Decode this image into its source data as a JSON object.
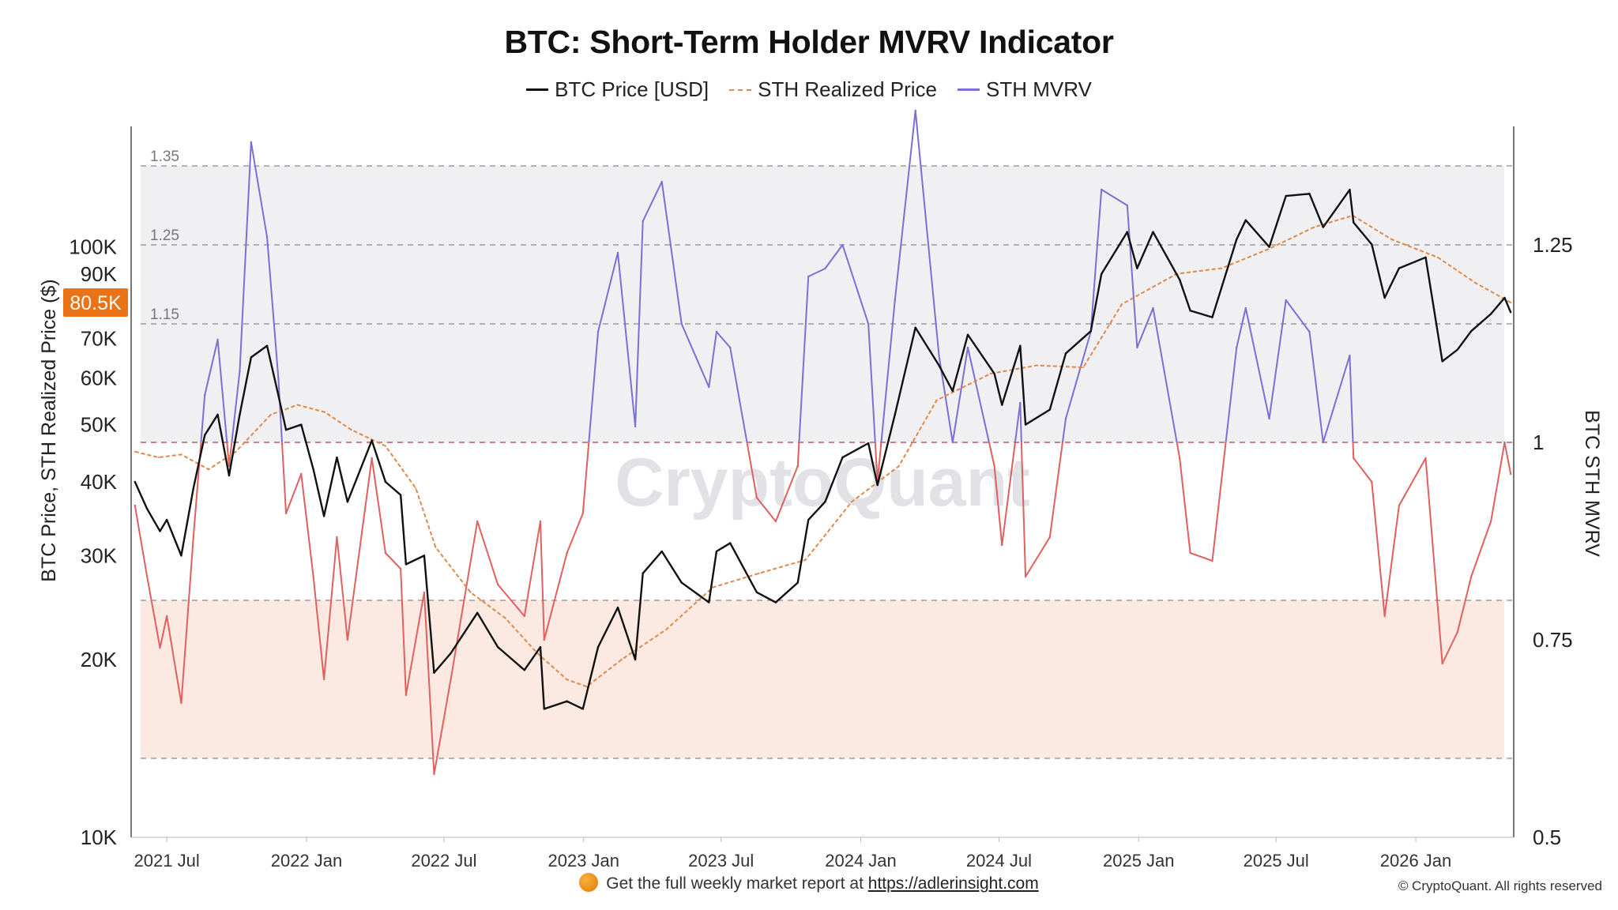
{
  "title": "BTC: Short-Term Holder MVRV Indicator",
  "legend": [
    {
      "name": "BTC Price [USD]",
      "color": "#111111",
      "style": "solid"
    },
    {
      "name": "STH Realized Price",
      "color": "#e0894a",
      "style": "dashed"
    },
    {
      "name": "STH MVRV",
      "color": "#7a6fd6",
      "style": "solid"
    }
  ],
  "footer": {
    "text": "Get the full weekly market report at",
    "link": "https://adlerinsight.com",
    "icon": "coin-icon"
  },
  "copyright": "© CryptoQuant. All rights reserved",
  "watermark": "CryptoQuant",
  "chart_data": {
    "type": "line",
    "x_axis": {
      "type": "date",
      "range": [
        "2021-05-15",
        "2026-05-10"
      ],
      "ticks": [
        {
          "date": "2021-07-01",
          "label": "2021 Jul"
        },
        {
          "date": "2022-01-01",
          "label": "2022 Jan"
        },
        {
          "date": "2022-07-01",
          "label": "2022 Jul"
        },
        {
          "date": "2023-01-01",
          "label": "2023 Jan"
        },
        {
          "date": "2023-07-01",
          "label": "2023 Jul"
        },
        {
          "date": "2024-01-01",
          "label": "2024 Jan"
        },
        {
          "date": "2024-07-01",
          "label": "2024 Jul"
        },
        {
          "date": "2025-01-01",
          "label": "2025 Jan"
        },
        {
          "date": "2025-07-01",
          "label": "2025 Jul"
        },
        {
          "date": "2026-01-01",
          "label": "2026 Jan"
        }
      ]
    },
    "y_left": {
      "label": "BTC Price, STH Realized Price ($)",
      "scale": "log",
      "range": [
        10000,
        160000
      ],
      "ticks": [
        {
          "value": 10000,
          "label": "10K"
        },
        {
          "value": 20000,
          "label": "20K"
        },
        {
          "value": 30000,
          "label": "30K"
        },
        {
          "value": 40000,
          "label": "40K"
        },
        {
          "value": 50000,
          "label": "50K"
        },
        {
          "value": 60000,
          "label": "60K"
        },
        {
          "value": 70000,
          "label": "70K"
        },
        {
          "value": 90000,
          "label": "90K"
        },
        {
          "value": 100000,
          "label": "100K"
        }
      ],
      "current_value_label": "80.5K",
      "current_value": 80500,
      "current_label_color": "#ea7318"
    },
    "y_right": {
      "label": "BTC STH MVRV",
      "scale": "linear",
      "range": [
        0.5,
        1.4
      ],
      "ticks": [
        {
          "value": 0.5,
          "label": "0.5"
        },
        {
          "value": 0.75,
          "label": "0.75"
        },
        {
          "value": 1.0,
          "label": "1"
        },
        {
          "value": 1.25,
          "label": "1.25"
        }
      ]
    },
    "reference_lines": [
      {
        "value": 1.35,
        "label": "1.35"
      },
      {
        "value": 1.25,
        "label": "1.25"
      },
      {
        "value": 1.15,
        "label": "1.15"
      },
      {
        "value": 1.0,
        "label": ""
      },
      {
        "value": 0.8,
        "label": ""
      },
      {
        "value": 0.6,
        "label": ""
      }
    ],
    "bands": [
      {
        "from": 1.0,
        "to": 1.35,
        "color": "#f0f0f3"
      },
      {
        "from": 0.6,
        "to": 0.8,
        "color": "#fce9e2"
      }
    ],
    "series": [
      {
        "name": "BTC Price [USD]",
        "axis": "left",
        "color": "#111111",
        "points": [
          [
            "2021-05-20",
            40000
          ],
          [
            "2021-06-05",
            36000
          ],
          [
            "2021-06-22",
            33000
          ],
          [
            "2021-07-01",
            34500
          ],
          [
            "2021-07-20",
            30000
          ],
          [
            "2021-08-05",
            39000
          ],
          [
            "2021-08-20",
            48000
          ],
          [
            "2021-09-06",
            52000
          ],
          [
            "2021-09-21",
            41000
          ],
          [
            "2021-10-05",
            52000
          ],
          [
            "2021-10-20",
            65000
          ],
          [
            "2021-11-10",
            68000
          ],
          [
            "2021-11-25",
            56000
          ],
          [
            "2021-12-05",
            49000
          ],
          [
            "2021-12-25",
            50000
          ],
          [
            "2022-01-10",
            42000
          ],
          [
            "2022-01-24",
            35000
          ],
          [
            "2022-02-10",
            44000
          ],
          [
            "2022-02-24",
            37000
          ],
          [
            "2022-03-28",
            47000
          ],
          [
            "2022-04-15",
            40000
          ],
          [
            "2022-05-05",
            38000
          ],
          [
            "2022-05-12",
            29000
          ],
          [
            "2022-06-05",
            30000
          ],
          [
            "2022-06-18",
            19000
          ],
          [
            "2022-07-10",
            20500
          ],
          [
            "2022-08-14",
            24000
          ],
          [
            "2022-09-10",
            21000
          ],
          [
            "2022-10-15",
            19200
          ],
          [
            "2022-11-05",
            21000
          ],
          [
            "2022-11-10",
            16500
          ],
          [
            "2022-12-10",
            17000
          ],
          [
            "2022-12-31",
            16500
          ],
          [
            "2023-01-20",
            21000
          ],
          [
            "2023-02-15",
            24500
          ],
          [
            "2023-03-10",
            20000
          ],
          [
            "2023-03-20",
            28000
          ],
          [
            "2023-04-14",
            30500
          ],
          [
            "2023-05-10",
            27000
          ],
          [
            "2023-06-15",
            25000
          ],
          [
            "2023-06-25",
            30500
          ],
          [
            "2023-07-13",
            31500
          ],
          [
            "2023-08-17",
            26000
          ],
          [
            "2023-09-11",
            25000
          ],
          [
            "2023-10-10",
            27000
          ],
          [
            "2023-10-24",
            34500
          ],
          [
            "2023-11-15",
            37000
          ],
          [
            "2023-12-08",
            44000
          ],
          [
            "2024-01-11",
            46500
          ],
          [
            "2024-01-23",
            39500
          ],
          [
            "2024-02-15",
            52000
          ],
          [
            "2024-03-13",
            73000
          ],
          [
            "2024-04-13",
            63000
          ],
          [
            "2024-05-01",
            57000
          ],
          [
            "2024-05-21",
            71000
          ],
          [
            "2024-06-25",
            61000
          ],
          [
            "2024-07-05",
            54000
          ],
          [
            "2024-07-29",
            68000
          ],
          [
            "2024-08-05",
            50000
          ],
          [
            "2024-09-06",
            53000
          ],
          [
            "2024-09-27",
            66000
          ],
          [
            "2024-10-30",
            72000
          ],
          [
            "2024-11-13",
            90000
          ],
          [
            "2024-12-17",
            106000
          ],
          [
            "2024-12-30",
            92000
          ],
          [
            "2025-01-20",
            106000
          ],
          [
            "2025-02-24",
            88000
          ],
          [
            "2025-03-10",
            78000
          ],
          [
            "2025-04-08",
            76000
          ],
          [
            "2025-05-10",
            103000
          ],
          [
            "2025-05-22",
            111000
          ],
          [
            "2025-06-22",
            100000
          ],
          [
            "2025-07-14",
            122000
          ],
          [
            "2025-08-14",
            123000
          ],
          [
            "2025-09-01",
            108000
          ],
          [
            "2025-10-06",
            125000
          ],
          [
            "2025-10-11",
            110000
          ],
          [
            "2025-11-04",
            101000
          ],
          [
            "2025-11-21",
            82000
          ],
          [
            "2025-12-10",
            92000
          ],
          [
            "2026-01-14",
            96000
          ],
          [
            "2026-02-05",
            64000
          ],
          [
            "2026-02-25",
            67000
          ],
          [
            "2026-03-15",
            72000
          ],
          [
            "2026-04-10",
            77000
          ],
          [
            "2026-04-28",
            82000
          ],
          [
            "2026-05-06",
            77500
          ]
        ]
      },
      {
        "name": "STH Realized Price",
        "axis": "left",
        "color": "#e0894a",
        "points": [
          [
            "2021-05-20",
            45000
          ],
          [
            "2021-06-20",
            44000
          ],
          [
            "2021-07-20",
            44500
          ],
          [
            "2021-08-25",
            42000
          ],
          [
            "2021-09-30",
            45000
          ],
          [
            "2021-11-15",
            52000
          ],
          [
            "2021-12-20",
            54000
          ],
          [
            "2022-01-25",
            52500
          ],
          [
            "2022-03-01",
            49000
          ],
          [
            "2022-04-15",
            46000
          ],
          [
            "2022-05-25",
            39000
          ],
          [
            "2022-06-20",
            31000
          ],
          [
            "2022-08-05",
            26000
          ],
          [
            "2022-09-20",
            23500
          ],
          [
            "2022-11-01",
            20500
          ],
          [
            "2022-12-10",
            18500
          ],
          [
            "2023-01-05",
            18000
          ],
          [
            "2023-02-20",
            20000
          ],
          [
            "2023-04-20",
            22500
          ],
          [
            "2023-06-20",
            26500
          ],
          [
            "2023-08-20",
            28000
          ],
          [
            "2023-10-20",
            29500
          ],
          [
            "2023-12-20",
            37000
          ],
          [
            "2024-02-20",
            42500
          ],
          [
            "2024-04-10",
            55000
          ],
          [
            "2024-06-20",
            61000
          ],
          [
            "2024-08-20",
            63000
          ],
          [
            "2024-10-20",
            62500
          ],
          [
            "2024-12-10",
            80000
          ],
          [
            "2025-02-20",
            90000
          ],
          [
            "2025-04-20",
            92000
          ],
          [
            "2025-06-20",
            99000
          ],
          [
            "2025-08-20",
            108000
          ],
          [
            "2025-10-10",
            113000
          ],
          [
            "2025-11-30",
            103000
          ],
          [
            "2026-01-30",
            96000
          ],
          [
            "2026-03-20",
            87000
          ],
          [
            "2026-05-06",
            80500
          ]
        ]
      },
      {
        "name": "STH MVRV",
        "axis": "right",
        "color_above_1": "#7a6fd6",
        "color_below_1": "#e0605f",
        "points": [
          [
            "2021-05-20",
            0.92
          ],
          [
            "2021-06-05",
            0.83
          ],
          [
            "2021-06-22",
            0.74
          ],
          [
            "2021-07-01",
            0.78
          ],
          [
            "2021-07-20",
            0.67
          ],
          [
            "2021-08-05",
            0.88
          ],
          [
            "2021-08-20",
            1.06
          ],
          [
            "2021-09-06",
            1.13
          ],
          [
            "2021-09-21",
            0.97
          ],
          [
            "2021-10-05",
            1.09
          ],
          [
            "2021-10-20",
            1.38
          ],
          [
            "2021-11-10",
            1.26
          ],
          [
            "2021-11-25",
            1.08
          ],
          [
            "2021-12-05",
            0.91
          ],
          [
            "2021-12-25",
            0.96
          ],
          [
            "2022-01-10",
            0.83
          ],
          [
            "2022-01-24",
            0.7
          ],
          [
            "2022-02-10",
            0.88
          ],
          [
            "2022-02-24",
            0.75
          ],
          [
            "2022-03-28",
            0.98
          ],
          [
            "2022-04-15",
            0.86
          ],
          [
            "2022-05-05",
            0.84
          ],
          [
            "2022-05-12",
            0.68
          ],
          [
            "2022-06-05",
            0.81
          ],
          [
            "2022-06-18",
            0.58
          ],
          [
            "2022-07-10",
            0.7
          ],
          [
            "2022-08-14",
            0.9
          ],
          [
            "2022-09-10",
            0.82
          ],
          [
            "2022-10-15",
            0.78
          ],
          [
            "2022-11-05",
            0.9
          ],
          [
            "2022-11-10",
            0.75
          ],
          [
            "2022-12-10",
            0.86
          ],
          [
            "2022-12-31",
            0.91
          ],
          [
            "2023-01-20",
            1.14
          ],
          [
            "2023-02-15",
            1.24
          ],
          [
            "2023-03-10",
            1.02
          ],
          [
            "2023-03-20",
            1.28
          ],
          [
            "2023-04-14",
            1.33
          ],
          [
            "2023-05-10",
            1.15
          ],
          [
            "2023-06-15",
            1.07
          ],
          [
            "2023-06-25",
            1.14
          ],
          [
            "2023-07-13",
            1.12
          ],
          [
            "2023-08-17",
            0.93
          ],
          [
            "2023-09-11",
            0.9
          ],
          [
            "2023-10-10",
            0.97
          ],
          [
            "2023-10-24",
            1.21
          ],
          [
            "2023-11-15",
            1.22
          ],
          [
            "2023-12-08",
            1.25
          ],
          [
            "2024-01-11",
            1.15
          ],
          [
            "2024-01-23",
            0.95
          ],
          [
            "2024-02-15",
            1.18
          ],
          [
            "2024-03-13",
            1.42
          ],
          [
            "2024-04-13",
            1.11
          ],
          [
            "2024-05-01",
            1.0
          ],
          [
            "2024-05-21",
            1.12
          ],
          [
            "2024-06-25",
            0.97
          ],
          [
            "2024-07-05",
            0.87
          ],
          [
            "2024-07-29",
            1.05
          ],
          [
            "2024-08-05",
            0.83
          ],
          [
            "2024-09-06",
            0.88
          ],
          [
            "2024-09-27",
            1.03
          ],
          [
            "2024-10-30",
            1.14
          ],
          [
            "2024-11-13",
            1.32
          ],
          [
            "2024-12-17",
            1.3
          ],
          [
            "2024-12-30",
            1.12
          ],
          [
            "2025-01-20",
            1.17
          ],
          [
            "2025-02-24",
            0.98
          ],
          [
            "2025-03-10",
            0.86
          ],
          [
            "2025-04-08",
            0.85
          ],
          [
            "2025-05-10",
            1.12
          ],
          [
            "2025-05-22",
            1.17
          ],
          [
            "2025-06-22",
            1.03
          ],
          [
            "2025-07-14",
            1.18
          ],
          [
            "2025-08-14",
            1.14
          ],
          [
            "2025-09-01",
            1.0
          ],
          [
            "2025-10-06",
            1.11
          ],
          [
            "2025-10-11",
            0.98
          ],
          [
            "2025-11-04",
            0.95
          ],
          [
            "2025-11-21",
            0.78
          ],
          [
            "2025-12-10",
            0.92
          ],
          [
            "2026-01-14",
            0.98
          ],
          [
            "2026-02-05",
            0.72
          ],
          [
            "2026-02-25",
            0.76
          ],
          [
            "2026-03-15",
            0.83
          ],
          [
            "2026-04-10",
            0.9
          ],
          [
            "2026-04-28",
            1.0
          ],
          [
            "2026-05-06",
            0.96
          ]
        ]
      }
    ]
  }
}
